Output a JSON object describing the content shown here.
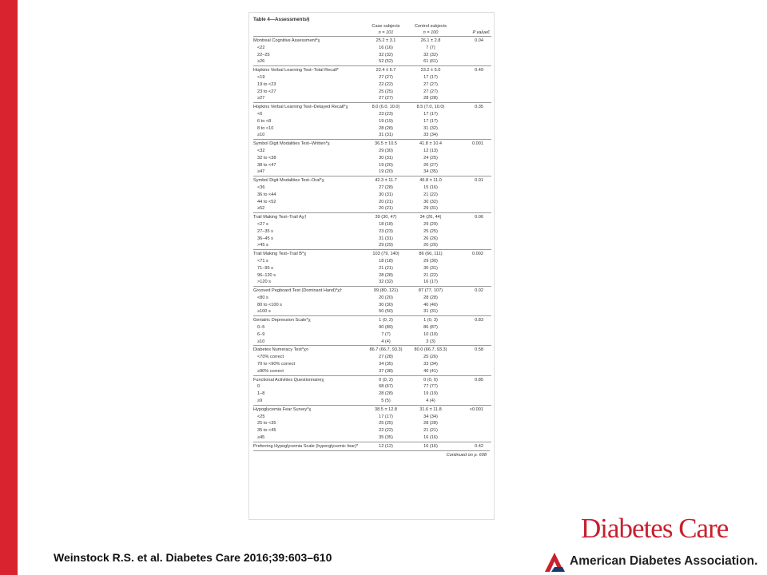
{
  "table": {
    "title": "Table 4—Assessments§",
    "columns": [
      {
        "name": "Case subjects",
        "n": "n = 101"
      },
      {
        "name": "Control subjects",
        "n": "n = 100"
      },
      {
        "name": "P value€"
      }
    ],
    "sections": [
      {
        "label": "Montreal Cognitive Assessment*χ",
        "case": "25.2 ± 3.1",
        "control": "26.1 ± 2.8",
        "p": "0.04",
        "rows": [
          [
            "<22",
            "16 (16)",
            "7 (7)"
          ],
          [
            "22–25",
            "32 (32)",
            "32 (32)"
          ],
          [
            "≥26",
            "52 (52)",
            "61 (61)"
          ]
        ]
      },
      {
        "label": "Hopkins Verbal Learning Test–Total Recall*",
        "case": "22.4 ± 5.7",
        "control": "23.2 ± 5.0",
        "p": "0.49",
        "rows": [
          [
            "<19",
            "27 (27)",
            "17 (17)"
          ],
          [
            "19 to <23",
            "22 (22)",
            "27 (27)"
          ],
          [
            "23 to <27",
            "25 (25)",
            "27 (27)"
          ],
          [
            "≥27",
            "27 (27)",
            "28 (28)"
          ]
        ]
      },
      {
        "label": "Hopkins Verbal Learning Test–Delayed Recall*χ",
        "case": "8.0 (6.0, 10.0)",
        "control": "8.5 (7.0, 10.0)",
        "p": "0.35",
        "rows": [
          [
            "<6",
            "23 (23)",
            "17 (17)"
          ],
          [
            "6 to <8",
            "19 (19)",
            "17 (17)"
          ],
          [
            "8 to <10",
            "28 (28)",
            "31 (32)"
          ],
          [
            "≥10",
            "31 (31)",
            "33 (34)"
          ]
        ]
      },
      {
        "label": "Symbol Digit Modalities Test–Written*χ",
        "case": "36.5 ± 10.5",
        "control": "41.8 ± 10.4",
        "p": "0.001",
        "rows": [
          [
            "<32",
            "29 (30)",
            "12 (13)"
          ],
          [
            "32 to <38",
            "30 (31)",
            "24 (25)"
          ],
          [
            "38 to <47",
            "19 (20)",
            "26 (27)"
          ],
          [
            "≥47",
            "19 (20)",
            "34 (35)"
          ]
        ]
      },
      {
        "label": "Symbol Digit Modalities Test–Oral*χ",
        "case": "42.3 ± 11.7",
        "control": "46.8 ± 11.0",
        "p": "0.01",
        "rows": [
          [
            "<36",
            "27 (28)",
            "15 (16)"
          ],
          [
            "36 to <44",
            "30 (31)",
            "21 (22)"
          ],
          [
            "44 to <52",
            "20 (21)",
            "30 (32)"
          ],
          [
            "≥52",
            "20 (21)",
            "29 (31)"
          ]
        ]
      },
      {
        "label": "Trail Making Test–Trail Aχ†",
        "case": "39 (30, 47)",
        "control": "34 (26, 44)",
        "p": "0.06",
        "rows": [
          [
            "<27 s",
            "18 (18)",
            "29 (29)"
          ],
          [
            "27–35 s",
            "23 (23)",
            "25 (25)"
          ],
          [
            "36–45 s",
            "31 (31)",
            "26 (26)"
          ],
          [
            ">45 s",
            "29 (29)",
            "20 (20)"
          ]
        ]
      },
      {
        "label": "Trail Making Test–Trail B*χ",
        "case": "103 (79, 140)",
        "control": "86 (66, 111)",
        "p": "0.002",
        "rows": [
          [
            "<71 s",
            "18 (18)",
            "29 (30)"
          ],
          [
            "71–95 s",
            "21 (21)",
            "30 (31)"
          ],
          [
            "96–120 s",
            "28 (28)",
            "21 (22)"
          ],
          [
            ">120 s",
            "32 (32)",
            "16 (17)"
          ]
        ]
      },
      {
        "label": "Grooved Pegboard Test (Dominant Hand)*χ†",
        "case": "99 (80, 121)",
        "control": "87 (77, 107)",
        "p": "0.02",
        "rows": [
          [
            "<80 s",
            "20 (20)",
            "28 (28)"
          ],
          [
            "80 to <100 s",
            "30 (30)",
            "40 (40)"
          ],
          [
            "≥100 s",
            "50 (50)",
            "31 (31)"
          ]
        ]
      },
      {
        "label": "Geriatric Depression Scale*χ",
        "case": "1 (0, 2)",
        "control": "1 (0, 3)",
        "p": "0.83",
        "rows": [
          [
            "0–5",
            "90 (89)",
            "86 (87)"
          ],
          [
            "6–9",
            "7 (7)",
            "10 (10)"
          ],
          [
            "≥10",
            "4 (4)",
            "3 (3)"
          ]
        ]
      },
      {
        "label": "Diabetes Numeracy Test*χ¤",
        "case": "86.7 (66.7, 93.3)",
        "control": "80.0 (66.7, 93.3)",
        "p": "0.58",
        "rows": [
          [
            "<70% correct",
            "27 (28)",
            "25 (26)"
          ],
          [
            "70 to <90% correct",
            "34 (35)",
            "33 (34)"
          ],
          [
            "≥90% correct",
            "37 (38)",
            "40 (41)"
          ]
        ]
      },
      {
        "label": "Functional Activities Questionnaireχ",
        "case": "0 (0, 2)",
        "control": "0 (0, 0)",
        "p": "0.85",
        "rows": [
          [
            "0",
            "68 (67)",
            "77 (77)"
          ],
          [
            "1–8",
            "28 (28)",
            "19 (19)"
          ],
          [
            "≥9",
            "5 (5)",
            "4 (4)"
          ]
        ]
      },
      {
        "label": "Hypoglycemia Fear Survey*χ",
        "case": "38.5 ± 12.8",
        "control": "31.6 ± 11.8",
        "p": "<0.001",
        "rows": [
          [
            "<25",
            "17 (17)",
            "34 (34)"
          ],
          [
            "25 to <35",
            "25 (25)",
            "28 (28)"
          ],
          [
            "35 to <45",
            "22 (22)",
            "21 (21)"
          ],
          [
            "≥45",
            "35 (35)",
            "16 (16)"
          ]
        ]
      },
      {
        "label": "Preferring Hypoglycemia Scale (hyperglycemic fear)*",
        "case": "12 (12)",
        "control": "16 (16)",
        "p": "0.42",
        "rows": []
      }
    ],
    "footer": "Continued on p. 608"
  },
  "citation": "Weinstock R.S. et al. Diabetes Care 2016;39:603–610",
  "logo": {
    "journal": "Diabetes Care",
    "association": "American Diabetes Association."
  }
}
